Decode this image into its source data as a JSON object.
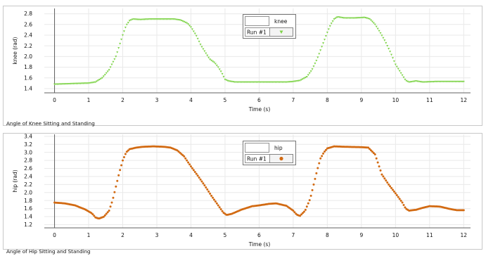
{
  "colors": {
    "knee_series": "#7ed348",
    "hip_series": "#d26a12",
    "panel_border": "#c8c8c8",
    "grid": "#e9e9e9",
    "axis": "#606060",
    "tick_text": "#111111"
  },
  "chart_data": [
    {
      "type": "scatter",
      "caption": "Angle of Knee Sitting and Standing",
      "xlabel": "Time (s)",
      "ylabel": "knee (rad)",
      "xlim": [
        -0.3,
        12.2
      ],
      "ylim": [
        1.32,
        2.9
      ],
      "x_ticks": [
        0,
        1,
        2,
        3,
        4,
        5,
        6,
        7,
        8,
        9,
        10,
        11,
        12
      ],
      "y_ticks": [
        1.4,
        1.6,
        1.8,
        2.0,
        2.2,
        2.4,
        2.6,
        2.8
      ],
      "y_tick_labels": [
        "1.4",
        "1.6",
        "1.8",
        "2.0",
        "2.2",
        "2.4",
        "2.6",
        "2.8"
      ],
      "grid": true,
      "legend": {
        "placement": "top-center",
        "title": "knee",
        "run_label": "Run #1",
        "marker": "triangle",
        "color": "#7ed348"
      },
      "series": [
        {
          "name": "knee",
          "color": "#7ed348",
          "marker": "triangle",
          "keypoints": [
            [
              0.0,
              1.48
            ],
            [
              0.5,
              1.49
            ],
            [
              1.0,
              1.5
            ],
            [
              1.2,
              1.52
            ],
            [
              1.4,
              1.6
            ],
            [
              1.6,
              1.75
            ],
            [
              1.8,
              2.0
            ],
            [
              2.0,
              2.4
            ],
            [
              2.1,
              2.58
            ],
            [
              2.2,
              2.67
            ],
            [
              2.3,
              2.7
            ],
            [
              2.5,
              2.69
            ],
            [
              2.8,
              2.7
            ],
            [
              3.2,
              2.7
            ],
            [
              3.5,
              2.7
            ],
            [
              3.7,
              2.68
            ],
            [
              3.9,
              2.62
            ],
            [
              4.0,
              2.55
            ],
            [
              4.15,
              2.4
            ],
            [
              4.3,
              2.2
            ],
            [
              4.45,
              2.05
            ],
            [
              4.55,
              1.95
            ],
            [
              4.7,
              1.88
            ],
            [
              4.8,
              1.8
            ],
            [
              4.9,
              1.7
            ],
            [
              5.0,
              1.57
            ],
            [
              5.1,
              1.54
            ],
            [
              5.3,
              1.52
            ],
            [
              6.0,
              1.52
            ],
            [
              6.8,
              1.52
            ],
            [
              7.0,
              1.53
            ],
            [
              7.2,
              1.55
            ],
            [
              7.4,
              1.62
            ],
            [
              7.55,
              1.75
            ],
            [
              7.7,
              1.95
            ],
            [
              7.85,
              2.2
            ],
            [
              8.0,
              2.45
            ],
            [
              8.1,
              2.6
            ],
            [
              8.2,
              2.7
            ],
            [
              8.3,
              2.74
            ],
            [
              8.5,
              2.72
            ],
            [
              8.8,
              2.72
            ],
            [
              9.1,
              2.73
            ],
            [
              9.25,
              2.7
            ],
            [
              9.4,
              2.6
            ],
            [
              9.55,
              2.45
            ],
            [
              9.7,
              2.28
            ],
            [
              9.85,
              2.08
            ],
            [
              10.0,
              1.85
            ],
            [
              10.15,
              1.7
            ],
            [
              10.3,
              1.55
            ],
            [
              10.4,
              1.52
            ],
            [
              10.6,
              1.54
            ],
            [
              10.8,
              1.52
            ],
            [
              11.2,
              1.53
            ],
            [
              12.0,
              1.53
            ]
          ]
        }
      ]
    },
    {
      "type": "scatter",
      "caption": "Angle of Hip Sitting and Standing",
      "xlabel": "Time (s)",
      "ylabel": "hip (rad)",
      "xlim": [
        -0.3,
        12.2
      ],
      "ylim": [
        1.12,
        3.45
      ],
      "x_ticks": [
        0,
        1,
        2,
        3,
        4,
        5,
        6,
        7,
        8,
        9,
        10,
        11,
        12
      ],
      "y_ticks": [
        1.2,
        1.4,
        1.6,
        1.8,
        2.0,
        2.2,
        2.4,
        2.6,
        2.8,
        3.0,
        3.2,
        3.4
      ],
      "y_tick_labels": [
        "1.2",
        "1.4",
        "1.6",
        "1.8",
        "2.0",
        "2.2",
        "2.4",
        "2.6",
        "2.8",
        "3.0",
        "3.2",
        "3.4"
      ],
      "grid": true,
      "legend": {
        "placement": "top-center",
        "title": "hip",
        "run_label": "Run #1",
        "marker": "circle",
        "color": "#d26a12"
      },
      "series": [
        {
          "name": "hip",
          "color": "#d26a12",
          "marker": "circle",
          "keypoints": [
            [
              0.0,
              1.75
            ],
            [
              0.3,
              1.73
            ],
            [
              0.6,
              1.68
            ],
            [
              0.9,
              1.58
            ],
            [
              1.1,
              1.48
            ],
            [
              1.2,
              1.38
            ],
            [
              1.3,
              1.35
            ],
            [
              1.45,
              1.4
            ],
            [
              1.6,
              1.55
            ],
            [
              1.7,
              1.8
            ],
            [
              1.8,
              2.15
            ],
            [
              1.9,
              2.5
            ],
            [
              2.0,
              2.8
            ],
            [
              2.1,
              3.0
            ],
            [
              2.2,
              3.08
            ],
            [
              2.4,
              3.12
            ],
            [
              2.6,
              3.14
            ],
            [
              2.9,
              3.15
            ],
            [
              3.2,
              3.14
            ],
            [
              3.4,
              3.12
            ],
            [
              3.6,
              3.05
            ],
            [
              3.8,
              2.9
            ],
            [
              4.0,
              2.65
            ],
            [
              4.2,
              2.42
            ],
            [
              4.4,
              2.18
            ],
            [
              4.6,
              1.92
            ],
            [
              4.8,
              1.68
            ],
            [
              4.95,
              1.5
            ],
            [
              5.05,
              1.44
            ],
            [
              5.2,
              1.47
            ],
            [
              5.5,
              1.58
            ],
            [
              5.8,
              1.66
            ],
            [
              6.0,
              1.68
            ],
            [
              6.3,
              1.72
            ],
            [
              6.5,
              1.73
            ],
            [
              6.8,
              1.67
            ],
            [
              7.0,
              1.55
            ],
            [
              7.1,
              1.45
            ],
            [
              7.2,
              1.42
            ],
            [
              7.35,
              1.55
            ],
            [
              7.5,
              1.85
            ],
            [
              7.6,
              2.2
            ],
            [
              7.7,
              2.55
            ],
            [
              7.8,
              2.85
            ],
            [
              7.9,
              3.0
            ],
            [
              8.0,
              3.1
            ],
            [
              8.2,
              3.15
            ],
            [
              8.5,
              3.14
            ],
            [
              9.0,
              3.13
            ],
            [
              9.2,
              3.12
            ],
            [
              9.4,
              2.95
            ],
            [
              9.5,
              2.7
            ],
            [
              9.6,
              2.45
            ],
            [
              9.8,
              2.2
            ],
            [
              10.0,
              1.98
            ],
            [
              10.2,
              1.75
            ],
            [
              10.3,
              1.6
            ],
            [
              10.4,
              1.55
            ],
            [
              10.6,
              1.57
            ],
            [
              10.8,
              1.62
            ],
            [
              11.0,
              1.66
            ],
            [
              11.3,
              1.65
            ],
            [
              11.6,
              1.59
            ],
            [
              11.8,
              1.56
            ],
            [
              12.0,
              1.56
            ]
          ]
        }
      ]
    }
  ]
}
